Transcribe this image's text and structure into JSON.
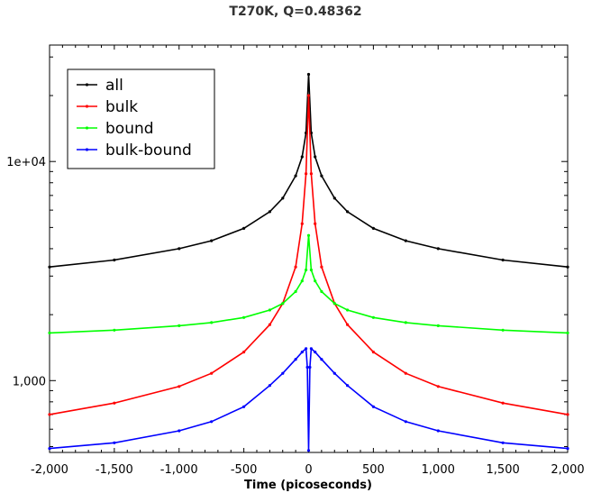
{
  "chart_data": {
    "type": "line",
    "title": "T270K, Q=0.48362",
    "xlabel": "Time (picoseconds)",
    "ylabel": "",
    "x_scale": "linear",
    "y_scale": "log",
    "xlim": [
      -2000,
      2000
    ],
    "ylim": [
      470,
      34000
    ],
    "x_ticks": [
      -2000,
      -1500,
      -1000,
      -500,
      0,
      500,
      1000,
      1500,
      2000
    ],
    "x_tick_labels": [
      "-2,000",
      "-1,500",
      "-1,000",
      "-500",
      "0",
      "500",
      "1,000",
      "1,500",
      "2,000"
    ],
    "y_ticks": [
      1000,
      10000
    ],
    "y_tick_labels": [
      "1,000",
      "1e+04"
    ],
    "grid": false,
    "legend_position": "top-left",
    "series": [
      {
        "name": "all",
        "color": "#000000",
        "x": [
          -2000,
          -1500,
          -1000,
          -750,
          -500,
          -300,
          -200,
          -100,
          -50,
          -20,
          0,
          20,
          50,
          100,
          200,
          300,
          500,
          750,
          1000,
          1500,
          2000
        ],
        "y": [
          3300,
          3550,
          4000,
          4350,
          4950,
          5900,
          6800,
          8600,
          10500,
          13500,
          25000,
          13500,
          10500,
          8600,
          6800,
          5900,
          4950,
          4350,
          4000,
          3550,
          3300
        ]
      },
      {
        "name": "bulk",
        "color": "#ff0000",
        "x": [
          -2000,
          -1500,
          -1000,
          -750,
          -500,
          -300,
          -200,
          -100,
          -50,
          -20,
          0,
          20,
          50,
          100,
          200,
          300,
          500,
          750,
          1000,
          1500,
          2000
        ],
        "y": [
          700,
          790,
          940,
          1080,
          1350,
          1800,
          2250,
          3300,
          5200,
          8800,
          20000,
          8800,
          5200,
          3300,
          2250,
          1800,
          1350,
          1080,
          940,
          790,
          700
        ]
      },
      {
        "name": "bound",
        "color": "#00ff00",
        "x": [
          -2000,
          -1500,
          -1000,
          -750,
          -500,
          -300,
          -200,
          -100,
          -50,
          -20,
          0,
          20,
          50,
          100,
          200,
          300,
          500,
          750,
          1000,
          1500,
          2000
        ],
        "y": [
          1650,
          1700,
          1780,
          1840,
          1940,
          2100,
          2250,
          2550,
          2850,
          3200,
          4600,
          3200,
          2850,
          2550,
          2250,
          2100,
          1940,
          1840,
          1780,
          1700,
          1650
        ]
      },
      {
        "name": "bulk-bound",
        "color": "#0000ff",
        "x": [
          -2000,
          -1500,
          -1000,
          -750,
          -500,
          -300,
          -200,
          -100,
          -50,
          -20,
          -10,
          0,
          10,
          20,
          50,
          100,
          200,
          300,
          500,
          750,
          1000,
          1500,
          2000
        ],
        "y": [
          490,
          520,
          590,
          650,
          760,
          950,
          1080,
          1250,
          1350,
          1400,
          1150,
          480,
          1150,
          1400,
          1350,
          1250,
          1080,
          950,
          760,
          650,
          590,
          520,
          490
        ]
      }
    ]
  }
}
